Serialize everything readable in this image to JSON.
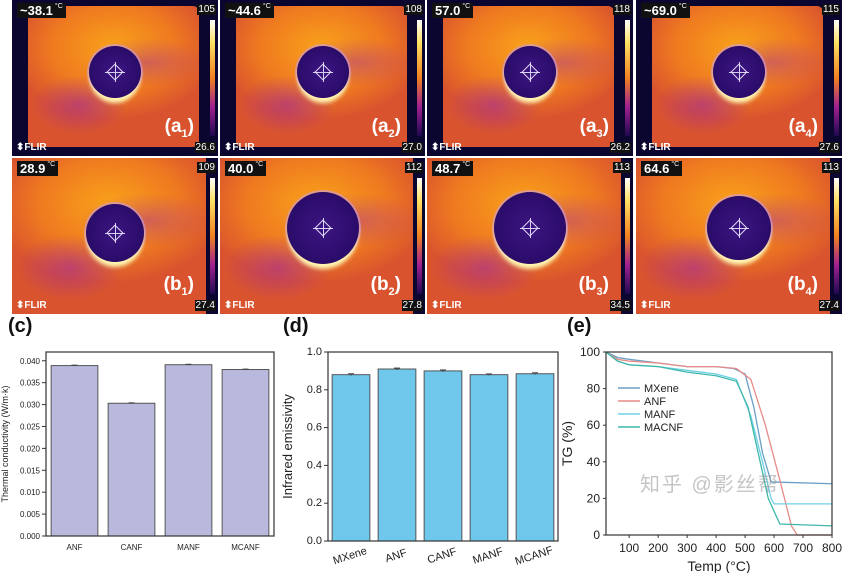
{
  "thermal": {
    "panels": [
      {
        "id": "a1",
        "letter": "a",
        "sub": "1",
        "temp": "~38.1",
        "unit": "°C",
        "max": "105",
        "min": "26.6",
        "logo": "FLIR"
      },
      {
        "id": "a2",
        "letter": "a",
        "sub": "2",
        "temp": "~44.6",
        "unit": "°C",
        "max": "108",
        "min": "27.0",
        "logo": "FLIR"
      },
      {
        "id": "a3",
        "letter": "a",
        "sub": "3",
        "temp": "57.0",
        "unit": "°C",
        "max": "118",
        "min": "26.2",
        "logo": "FLIR"
      },
      {
        "id": "a4",
        "letter": "a",
        "sub": "4",
        "temp": "~69.0",
        "unit": "°C",
        "max": "115",
        "min": "27.6",
        "logo": "FLIR"
      },
      {
        "id": "b1",
        "letter": "b",
        "sub": "1",
        "temp": "28.9",
        "unit": "°C",
        "max": "109",
        "min": "27.4",
        "logo": "FLIR"
      },
      {
        "id": "b2",
        "letter": "b",
        "sub": "2",
        "temp": "40.0",
        "unit": "°C",
        "max": "112",
        "min": "27.8",
        "logo": "FLIR"
      },
      {
        "id": "b3",
        "letter": "b",
        "sub": "3",
        "temp": "48.7",
        "unit": "°C",
        "max": "113",
        "min": "34.5",
        "logo": "FLIR"
      },
      {
        "id": "b4",
        "letter": "b",
        "sub": "4",
        "temp": "64.6",
        "unit": "°C",
        "max": "113",
        "min": "27.4",
        "logo": "FLIR"
      }
    ]
  },
  "watermark": "知乎 @影丝帮",
  "chart_data": [
    {
      "panel": "(c)",
      "type": "bar",
      "categories": [
        "ANF",
        "CANF",
        "MANF",
        "MCANF"
      ],
      "values": [
        0.0389,
        0.0303,
        0.0391,
        0.038
      ],
      "errors": [
        0.0001,
        0.0001,
        0.0001,
        0.0001
      ],
      "ylabel": "Thermal conductivity (W/m·k)",
      "xlabel": "",
      "ylim": [
        0,
        0.042
      ],
      "yticks": [
        "0.000",
        "0.005",
        "0.010",
        "0.015",
        "0.020",
        "0.025",
        "0.030",
        "0.035",
        "0.040"
      ],
      "color": "#b9b9dd"
    },
    {
      "panel": "(d)",
      "type": "bar",
      "categories": [
        "MXene",
        "ANF",
        "CANF",
        "MANF",
        "MCANF"
      ],
      "values": [
        0.88,
        0.91,
        0.9,
        0.88,
        0.885
      ],
      "errors": [
        0.005,
        0.005,
        0.005,
        0.004,
        0.005
      ],
      "ylabel": "Infrared emissivity",
      "xlabel": "",
      "ylim": [
        0,
        1.0
      ],
      "yticks": [
        "0.0",
        "0.2",
        "0.4",
        "0.6",
        "0.8",
        "1.0"
      ],
      "color": "#6fc7ec"
    },
    {
      "panel": "(e)",
      "type": "line",
      "xlabel": "Temp (°C)",
      "ylabel": "TG (%)",
      "xlim": [
        20,
        800
      ],
      "ylim": [
        0,
        100
      ],
      "xticks": [
        "100",
        "200",
        "300",
        "400",
        "500",
        "600",
        "700",
        "800"
      ],
      "yticks": [
        "0",
        "20",
        "40",
        "60",
        "80",
        "100"
      ],
      "legend_position": "upper-left",
      "series": [
        {
          "name": "MXene",
          "color": "#6a9fc6",
          "x": [
            20,
            60,
            100,
            200,
            300,
            400,
            460,
            500,
            530,
            560,
            590,
            800
          ],
          "y": [
            100,
            97,
            96,
            94,
            92,
            92,
            91,
            88,
            70,
            45,
            29,
            28
          ]
        },
        {
          "name": "ANF",
          "color": "#e88a86",
          "x": [
            20,
            60,
            100,
            200,
            300,
            400,
            470,
            520,
            570,
            620,
            660,
            680,
            800
          ],
          "y": [
            100,
            96,
            95,
            94,
            92,
            92,
            91,
            85,
            60,
            30,
            5,
            0,
            0
          ]
        },
        {
          "name": "MANF",
          "color": "#6fd0e6",
          "x": [
            20,
            60,
            100,
            200,
            300,
            400,
            470,
            520,
            560,
            590,
            600,
            800
          ],
          "y": [
            100,
            95,
            93,
            92,
            90,
            88,
            85,
            65,
            40,
            20,
            17,
            17
          ]
        },
        {
          "name": "MACNF",
          "color": "#3fb8a8",
          "x": [
            20,
            60,
            100,
            200,
            300,
            400,
            470,
            510,
            545,
            580,
            620,
            800
          ],
          "y": [
            100,
            95,
            93,
            92,
            89,
            87,
            84,
            70,
            45,
            20,
            6,
            5
          ]
        }
      ]
    }
  ]
}
